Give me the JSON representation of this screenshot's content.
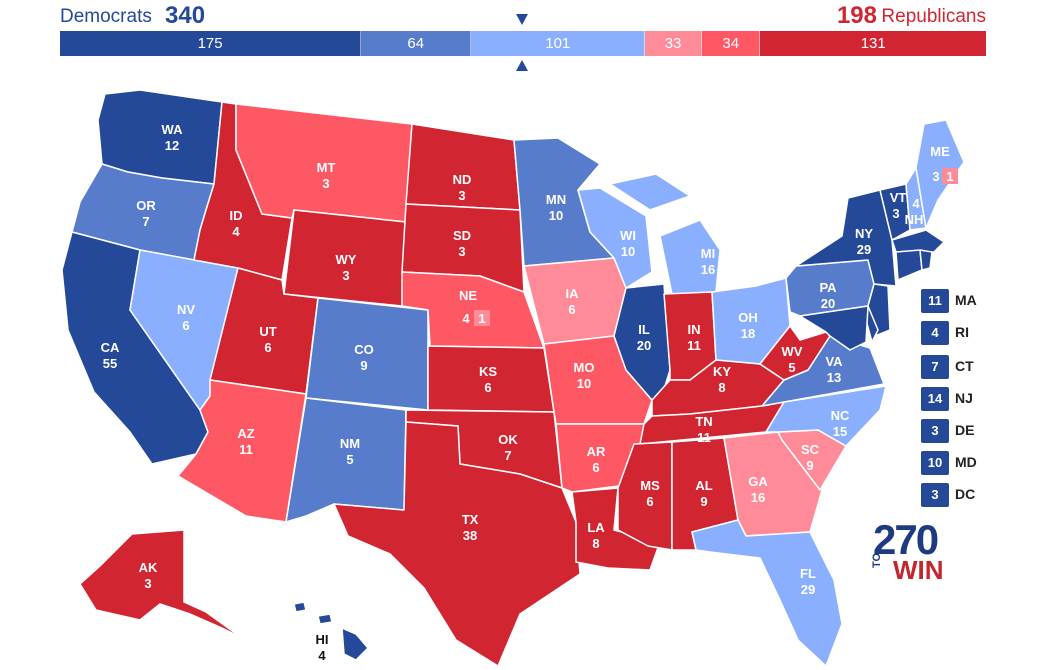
{
  "header": {
    "dem_label": "Democrats",
    "dem_total": "340",
    "rep_total": "198",
    "rep_label": "Republicans"
  },
  "colors": {
    "safe_d": "#244999",
    "likely_d": "#577ccc",
    "lean_d": "#8aafff",
    "tilt_r": "#ff8b98",
    "lean_r": "#ff5865",
    "safe_r": "#d22532",
    "dem_text": "#244999",
    "rep_text": "#d22532"
  },
  "bar": [
    {
      "label": "175",
      "value": 175,
      "color": "#244999"
    },
    {
      "label": "64",
      "value": 64,
      "color": "#577ccc"
    },
    {
      "label": "101",
      "value": 101,
      "color": "#8aafff"
    },
    {
      "label": "33",
      "value": 33,
      "color": "#ff8b98"
    },
    {
      "label": "34",
      "value": 34,
      "color": "#ff5865"
    },
    {
      "label": "131",
      "value": 131,
      "color": "#d22532"
    }
  ],
  "states": [
    {
      "abbr": "WA",
      "votes": "12"
    },
    {
      "abbr": "OR",
      "votes": "7"
    },
    {
      "abbr": "CA",
      "votes": "55"
    },
    {
      "abbr": "NV",
      "votes": "6"
    },
    {
      "abbr": "ID",
      "votes": "4"
    },
    {
      "abbr": "MT",
      "votes": "3"
    },
    {
      "abbr": "WY",
      "votes": "3"
    },
    {
      "abbr": "UT",
      "votes": "6"
    },
    {
      "abbr": "AZ",
      "votes": "11"
    },
    {
      "abbr": "CO",
      "votes": "9"
    },
    {
      "abbr": "NM",
      "votes": "5"
    },
    {
      "abbr": "ND",
      "votes": "3"
    },
    {
      "abbr": "SD",
      "votes": "3"
    },
    {
      "abbr": "NE",
      "votes": "4"
    },
    {
      "abbr": "KS",
      "votes": "6"
    },
    {
      "abbr": "OK",
      "votes": "7"
    },
    {
      "abbr": "TX",
      "votes": "38"
    },
    {
      "abbr": "MN",
      "votes": "10"
    },
    {
      "abbr": "IA",
      "votes": "6"
    },
    {
      "abbr": "MO",
      "votes": "10"
    },
    {
      "abbr": "AR",
      "votes": "6"
    },
    {
      "abbr": "LA",
      "votes": "8"
    },
    {
      "abbr": "WI",
      "votes": "10"
    },
    {
      "abbr": "IL",
      "votes": "20"
    },
    {
      "abbr": "MI",
      "votes": "16"
    },
    {
      "abbr": "IN",
      "votes": "11"
    },
    {
      "abbr": "OH",
      "votes": "18"
    },
    {
      "abbr": "KY",
      "votes": "8"
    },
    {
      "abbr": "TN",
      "votes": "11"
    },
    {
      "abbr": "MS",
      "votes": "6"
    },
    {
      "abbr": "AL",
      "votes": "9"
    },
    {
      "abbr": "GA",
      "votes": "16"
    },
    {
      "abbr": "FL",
      "votes": "29"
    },
    {
      "abbr": "SC",
      "votes": "9"
    },
    {
      "abbr": "NC",
      "votes": "15"
    },
    {
      "abbr": "VA",
      "votes": "13"
    },
    {
      "abbr": "WV",
      "votes": "5"
    },
    {
      "abbr": "PA",
      "votes": "20"
    },
    {
      "abbr": "NY",
      "votes": "29"
    },
    {
      "abbr": "VT",
      "votes": "3"
    },
    {
      "abbr": "NH",
      "votes": "4"
    },
    {
      "abbr": "ME",
      "votes": "3"
    },
    {
      "abbr": "AK",
      "votes": "3"
    },
    {
      "abbr": "HI",
      "votes": "4"
    }
  ],
  "district_boxes": {
    "ne_district": "1",
    "me_district": "1"
  },
  "small_states": [
    {
      "abbr": "MA",
      "votes": "11"
    },
    {
      "abbr": "RI",
      "votes": "4"
    },
    {
      "abbr": "CT",
      "votes": "7"
    },
    {
      "abbr": "NJ",
      "votes": "14"
    },
    {
      "abbr": "DE",
      "votes": "3"
    },
    {
      "abbr": "MD",
      "votes": "10"
    },
    {
      "abbr": "DC",
      "votes": "3"
    }
  ],
  "logo": {
    "number": "270",
    "to": "TO",
    "win": "WIN"
  }
}
